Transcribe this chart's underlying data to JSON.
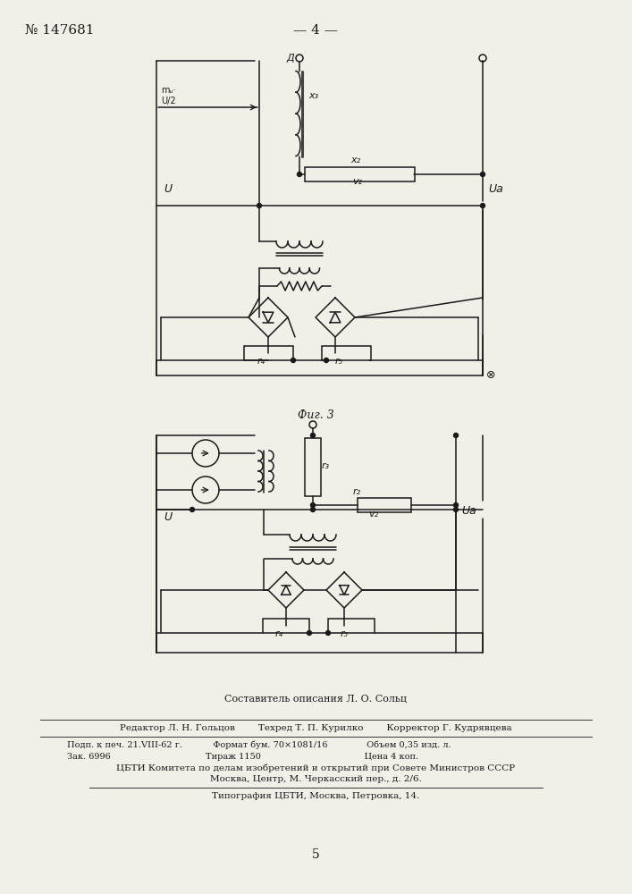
{
  "title_left": "№ 147681",
  "title_center": "— 4 —",
  "fig3_label": "Фиг. 3",
  "page_num": "5",
  "bg_color": "#f0efe8",
  "line_color": "#1a1a1a",
  "footer_line0": "Составитель описания Л. О. Сольц",
  "footer_line1": "Редактор Л. Н. Гольцов        Техред Т. П. Курилко        Корректор Г. Кудрявцева",
  "footer_line2": "Подп. к печ. 21.VIII-62 г.           Формат бум. 70×1081/16              Объем 0,35 изд. л.",
  "footer_line3": "Зак. 6996                                  Тираж 1150                                     Цена 4 коп.",
  "footer_line4": "ЦБТИ Комитета по делам изобретений и открытий при Совете Министров СССР",
  "footer_line5": "Москва, Центр, М. Черкасский пер., д. 2/6.",
  "footer_line6": "Типография ЦБТИ, Москва, Петровка, 14."
}
